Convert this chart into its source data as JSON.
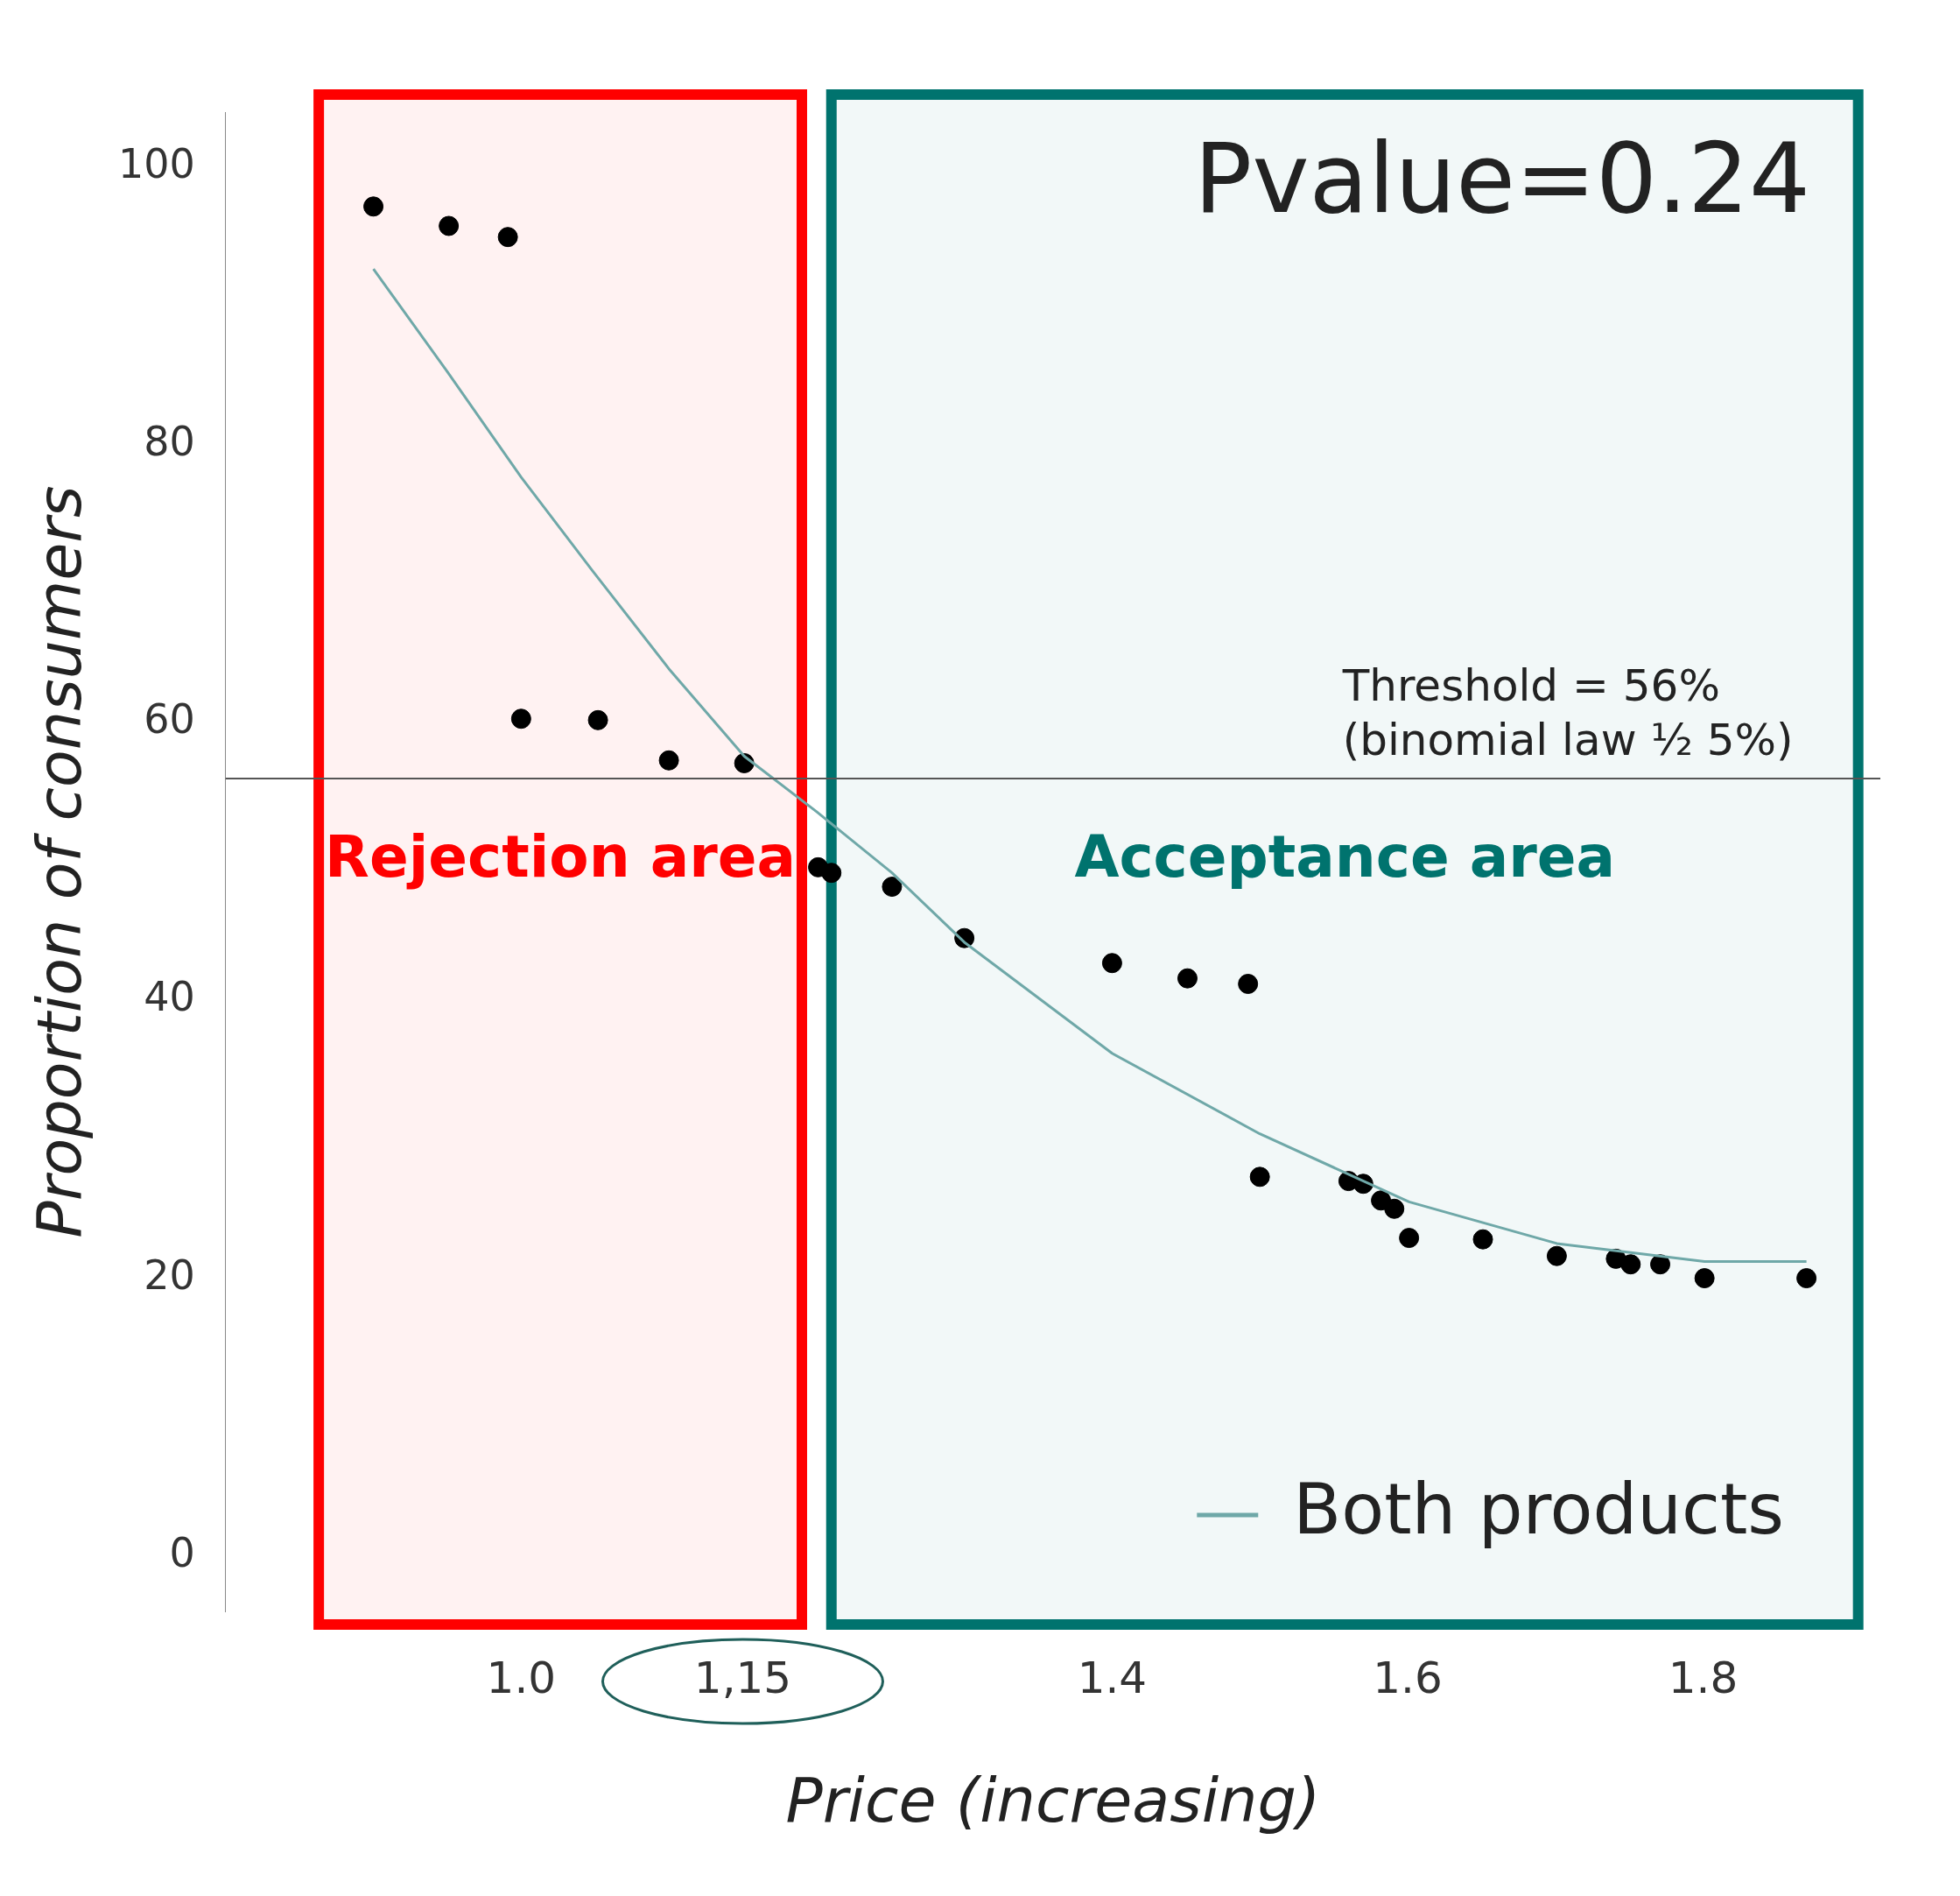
{
  "chart_data": {
    "type": "scatter",
    "xlabel": "Price (increasing)",
    "ylabel": "Proportion of consumers",
    "xlim": [
      0.8,
      1.92
    ],
    "ylim": [
      -4,
      104
    ],
    "xticks": [
      {
        "value": 1,
        "label": "1.0"
      },
      {
        "value": 1.15,
        "label": "1,15"
      },
      1.4,
      1.6,
      1.8
    ],
    "yticks": [
      0,
      20,
      40,
      60,
      80,
      100
    ],
    "grid": false,
    "legend": "bottom right",
    "marker": "circle",
    "series": [
      {
        "color": "#000000",
        "x": [
          0.9,
          0.951,
          0.991,
          1.0,
          1.052,
          1.1,
          1.151,
          1.201,
          1.21,
          1.251,
          1.3,
          1.4,
          1.451,
          1.492,
          1.5,
          1.56,
          1.57,
          1.582,
          1.591,
          1.601,
          1.651,
          1.701,
          1.741,
          1.751,
          1.771,
          1.801,
          1.87
        ],
        "values": [
          97.2,
          95.8,
          95.0,
          60.3,
          60.2,
          57.3,
          57.1,
          49.6,
          49.2,
          48.2,
          44.5,
          42.7,
          41.6,
          41.2,
          27.3,
          27.0,
          26.8,
          25.6,
          25.0,
          22.9,
          22.8,
          21.6,
          21.4,
          21.0,
          21.0,
          20.0,
          20.0
        ]
      },
      {
        "type": "line",
        "name": "Both products",
        "color": "#6fa8a8",
        "marker": "none",
        "x": [
          0.9,
          0.95,
          1.0,
          1.048,
          1.1,
          1.151,
          1.2,
          1.251,
          1.3,
          1.4,
          1.5,
          1.601,
          1.701,
          1.801,
          1.87
        ],
        "values": [
          92.7,
          85.3,
          77.7,
          71.0,
          63.9,
          57.6,
          53.6,
          49.2,
          44.2,
          36.2,
          30.4,
          25.5,
          22.5,
          21.2,
          21.2
        ]
      }
    ],
    "ref_lines": [
      {
        "axis": "y",
        "value": 56,
        "label": "Threshold = 56%\n(binomial law ½ 5%)",
        "color": "#555555"
      }
    ],
    "bands": [
      {
        "axis": "x",
        "from": 0.863,
        "to": 1.19,
        "label": "Rejection area",
        "color": "#ff0000"
      },
      {
        "axis": "x",
        "from": 1.21,
        "to": 1.905,
        "label": "Acceptance area",
        "color": "#00736e"
      }
    ],
    "annotations": [
      "Pvalue=0.24"
    ]
  }
}
